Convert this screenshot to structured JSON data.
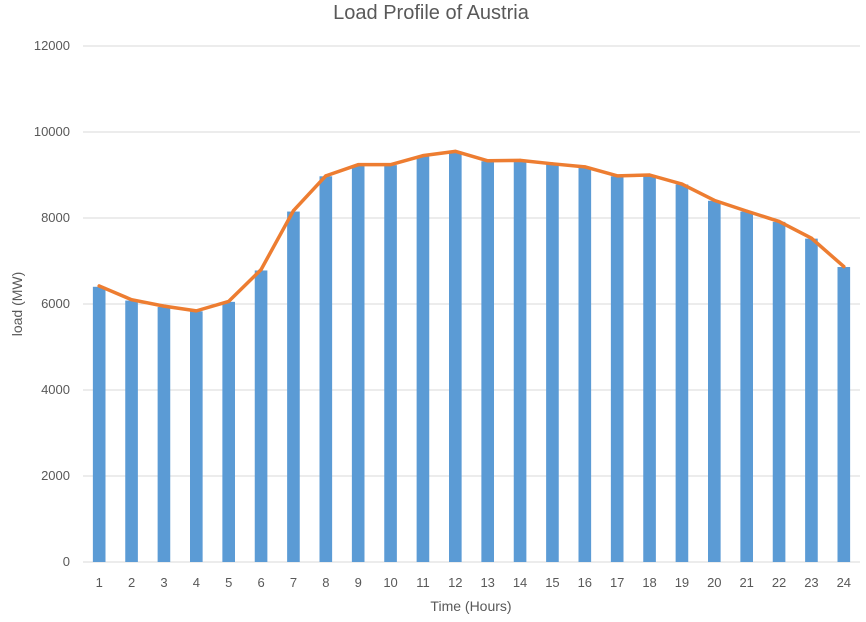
{
  "chart_data": {
    "type": "bar",
    "title": "Load Profile of Austria",
    "xlabel": "Time (Hours)",
    "ylabel": "load (MW)",
    "ylim": [
      0,
      12000
    ],
    "yticks": [
      "0",
      "2000",
      "4000",
      "6000",
      "8000",
      "10000",
      "12000"
    ],
    "categories": [
      "1",
      "2",
      "3",
      "4",
      "5",
      "6",
      "7",
      "8",
      "9",
      "10",
      "11",
      "12",
      "13",
      "14",
      "15",
      "16",
      "17",
      "18",
      "19",
      "20",
      "21",
      "22",
      "23",
      "24"
    ],
    "grid": true,
    "legend": "none",
    "series": [
      {
        "kind": "bar",
        "color": "#5b9bd5",
        "values": [
          6400,
          6080,
          5930,
          5830,
          6050,
          6780,
          8150,
          8970,
          9230,
          9230,
          9440,
          9540,
          9320,
          9330,
          9250,
          9180,
          8970,
          8990,
          8780,
          8400,
          8150,
          7910,
          7520,
          6860
        ]
      },
      {
        "kind": "line",
        "color": "#ed7d31",
        "values": [
          6420,
          6100,
          5950,
          5840,
          6060,
          6800,
          8170,
          8980,
          9240,
          9240,
          9450,
          9550,
          9330,
          9340,
          9260,
          9190,
          8980,
          9000,
          8790,
          8410,
          8160,
          7920,
          7530,
          6870
        ]
      }
    ]
  }
}
